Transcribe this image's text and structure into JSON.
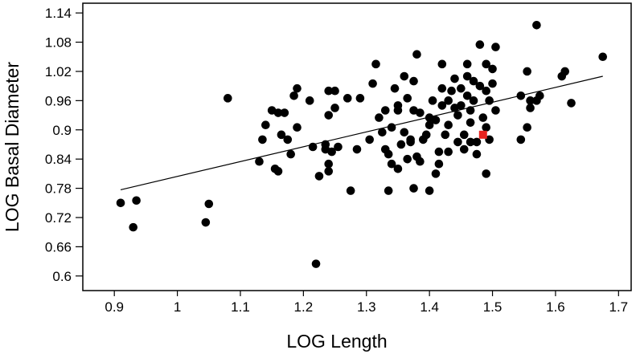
{
  "chart_data": {
    "type": "scatter",
    "title": "",
    "xlabel": "LOG Length",
    "ylabel": "LOG Basal Diameter",
    "xlim": [
      0.85,
      1.72
    ],
    "ylim": [
      0.57,
      1.16
    ],
    "xticks": [
      "0.9",
      "1",
      "1.1",
      "1.2",
      "1.3",
      "1.4",
      "1.5",
      "1.6",
      "1.7"
    ],
    "yticks": [
      "0.6",
      "0.66",
      "0.72",
      "0.78",
      "0.84",
      "0.9",
      "0.96",
      "1.02",
      "1.08",
      "1.14"
    ],
    "grid": false,
    "legend": "none",
    "colors": {
      "points": "#000000",
      "highlight": "#e8231f",
      "line": "#000000"
    },
    "trendline": {
      "x": [
        0.91,
        1.675
      ],
      "y": [
        0.777,
        1.01
      ]
    },
    "highlight_point": {
      "x": 1.485,
      "y": 0.89
    },
    "points": [
      [
        0.91,
        0.75
      ],
      [
        0.93,
        0.7
      ],
      [
        0.935,
        0.755
      ],
      [
        1.045,
        0.71
      ],
      [
        1.05,
        0.748
      ],
      [
        1.08,
        0.965
      ],
      [
        1.13,
        0.835
      ],
      [
        1.135,
        0.88
      ],
      [
        1.14,
        0.91
      ],
      [
        1.15,
        0.94
      ],
      [
        1.155,
        0.82
      ],
      [
        1.16,
        0.935
      ],
      [
        1.16,
        0.815
      ],
      [
        1.165,
        0.89
      ],
      [
        1.17,
        0.935
      ],
      [
        1.175,
        0.88
      ],
      [
        1.18,
        0.85
      ],
      [
        1.185,
        0.97
      ],
      [
        1.19,
        0.985
      ],
      [
        1.19,
        0.905
      ],
      [
        1.21,
        0.96
      ],
      [
        1.215,
        0.865
      ],
      [
        1.22,
        0.625
      ],
      [
        1.225,
        0.805
      ],
      [
        1.235,
        0.87
      ],
      [
        1.235,
        0.86
      ],
      [
        1.24,
        0.98
      ],
      [
        1.24,
        0.83
      ],
      [
        1.24,
        0.815
      ],
      [
        1.24,
        0.93
      ],
      [
        1.245,
        0.855
      ],
      [
        1.25,
        0.98
      ],
      [
        1.25,
        0.945
      ],
      [
        1.255,
        0.865
      ],
      [
        1.27,
        0.965
      ],
      [
        1.275,
        0.775
      ],
      [
        1.285,
        0.86
      ],
      [
        1.29,
        0.965
      ],
      [
        1.305,
        0.88
      ],
      [
        1.31,
        0.995
      ],
      [
        1.315,
        1.035
      ],
      [
        1.32,
        0.925
      ],
      [
        1.325,
        0.895
      ],
      [
        1.33,
        0.94
      ],
      [
        1.33,
        0.86
      ],
      [
        1.335,
        0.775
      ],
      [
        1.335,
        0.85
      ],
      [
        1.34,
        0.83
      ],
      [
        1.34,
        0.905
      ],
      [
        1.345,
        0.985
      ],
      [
        1.35,
        0.95
      ],
      [
        1.35,
        0.94
      ],
      [
        1.35,
        0.82
      ],
      [
        1.355,
        0.87
      ],
      [
        1.36,
        1.01
      ],
      [
        1.36,
        0.895
      ],
      [
        1.365,
        0.965
      ],
      [
        1.365,
        0.84
      ],
      [
        1.37,
        0.88
      ],
      [
        1.37,
        0.875
      ],
      [
        1.375,
        1.0
      ],
      [
        1.375,
        0.94
      ],
      [
        1.38,
        1.055
      ],
      [
        1.38,
        0.845
      ],
      [
        1.375,
        0.78
      ],
      [
        1.385,
        0.935
      ],
      [
        1.385,
        0.835
      ],
      [
        1.39,
        0.88
      ],
      [
        1.395,
        0.89
      ],
      [
        1.4,
        0.925
      ],
      [
        1.4,
        0.91
      ],
      [
        1.4,
        0.775
      ],
      [
        1.405,
        0.96
      ],
      [
        1.41,
        0.81
      ],
      [
        1.41,
        0.92
      ],
      [
        1.415,
        0.855
      ],
      [
        1.415,
        0.83
      ],
      [
        1.42,
        0.985
      ],
      [
        1.42,
        0.95
      ],
      [
        1.42,
        1.035
      ],
      [
        1.425,
        0.89
      ],
      [
        1.43,
        0.96
      ],
      [
        1.43,
        0.91
      ],
      [
        1.43,
        0.855
      ],
      [
        1.435,
        0.98
      ],
      [
        1.44,
        1.005
      ],
      [
        1.44,
        0.945
      ],
      [
        1.445,
        0.93
      ],
      [
        1.445,
        0.875
      ],
      [
        1.45,
        0.985
      ],
      [
        1.45,
        0.95
      ],
      [
        1.455,
        0.89
      ],
      [
        1.455,
        0.86
      ],
      [
        1.46,
        1.035
      ],
      [
        1.46,
        1.01
      ],
      [
        1.46,
        0.97
      ],
      [
        1.465,
        0.94
      ],
      [
        1.465,
        0.915
      ],
      [
        1.465,
        0.875
      ],
      [
        1.47,
        1.0
      ],
      [
        1.47,
        0.96
      ],
      [
        1.475,
        0.875
      ],
      [
        1.475,
        0.85
      ],
      [
        1.48,
        1.075
      ],
      [
        1.48,
        0.99
      ],
      [
        1.485,
        0.925
      ],
      [
        1.49,
        1.035
      ],
      [
        1.49,
        0.98
      ],
      [
        1.49,
        0.905
      ],
      [
        1.49,
        0.81
      ],
      [
        1.495,
        0.96
      ],
      [
        1.495,
        0.88
      ],
      [
        1.5,
        1.025
      ],
      [
        1.5,
        0.995
      ],
      [
        1.505,
        1.07
      ],
      [
        1.505,
        0.94
      ],
      [
        1.545,
        0.97
      ],
      [
        1.545,
        0.88
      ],
      [
        1.555,
        1.02
      ],
      [
        1.555,
        0.905
      ],
      [
        1.56,
        0.96
      ],
      [
        1.56,
        0.945
      ],
      [
        1.57,
        1.115
      ],
      [
        1.57,
        0.96
      ],
      [
        1.575,
        0.97
      ],
      [
        1.61,
        1.01
      ],
      [
        1.615,
        1.02
      ],
      [
        1.625,
        0.955
      ],
      [
        1.675,
        1.05
      ]
    ]
  }
}
